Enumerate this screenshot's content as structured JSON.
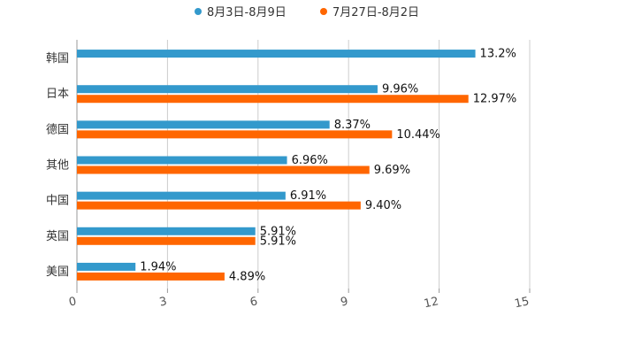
{
  "chart_data": {
    "type": "bar",
    "orientation": "horizontal",
    "categories": [
      "韩国",
      "日本",
      "德国",
      "其他",
      "中国",
      "英国",
      "美国"
    ],
    "series": [
      {
        "name": "8月3日-8月9日",
        "color": "#3399cc",
        "values": [
          13.2,
          9.96,
          8.37,
          6.96,
          6.91,
          5.91,
          1.94
        ],
        "labels": [
          "13.2%",
          "9.96%",
          "8.37%",
          "6.96%",
          "6.91%",
          "5.91%",
          "1.94%"
        ]
      },
      {
        "name": "7月27日-8月2日",
        "color": "#ff6600",
        "values": [
          null,
          12.97,
          10.44,
          9.69,
          9.4,
          5.91,
          4.89
        ],
        "labels": [
          "",
          "12.97%",
          "10.44%",
          "9.69%",
          "9.40%",
          "5.91%",
          "4.89%"
        ]
      }
    ],
    "xlim": [
      0,
      15
    ],
    "xticks": [
      0,
      3,
      6,
      9,
      12,
      15
    ],
    "xtick_labels": [
      "0",
      "3",
      "6",
      "9",
      "12",
      "15"
    ],
    "grid": true,
    "legend": "top-center"
  }
}
